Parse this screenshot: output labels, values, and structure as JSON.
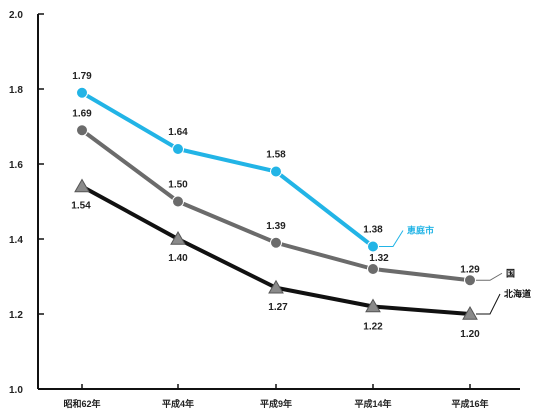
{
  "chart_data": {
    "type": "line",
    "categories": [
      "昭和62年",
      "平成4年",
      "平成9年",
      "平成14年",
      "平成16年"
    ],
    "ylim": [
      1.0,
      2.0
    ],
    "yticks": [
      "1.0",
      "1.2",
      "1.4",
      "1.6",
      "1.8",
      "2.0"
    ],
    "ytick_values": [
      1.0,
      1.2,
      1.4,
      1.6,
      1.8,
      2.0
    ],
    "grid": false,
    "series": [
      {
        "name": "恵庭市",
        "color": "#22b4e6",
        "marker": "circle",
        "values": [
          1.79,
          1.64,
          1.58,
          1.38,
          null
        ],
        "labels": [
          "1.79",
          "1.64",
          "1.58",
          "1.38",
          ""
        ]
      },
      {
        "name": "国",
        "color": "#6b6b6b",
        "marker": "circle",
        "values": [
          1.69,
          1.5,
          1.39,
          1.32,
          1.29
        ],
        "labels": [
          "1.69",
          "1.50",
          "1.39",
          "1.32",
          "1.29"
        ]
      },
      {
        "name": "北海道",
        "color": "#111111",
        "marker": "triangle",
        "values": [
          1.54,
          1.4,
          1.27,
          1.22,
          1.2
        ],
        "labels": [
          "1.54",
          "1.40",
          "1.27",
          "1.22",
          "1.20"
        ]
      }
    ]
  }
}
